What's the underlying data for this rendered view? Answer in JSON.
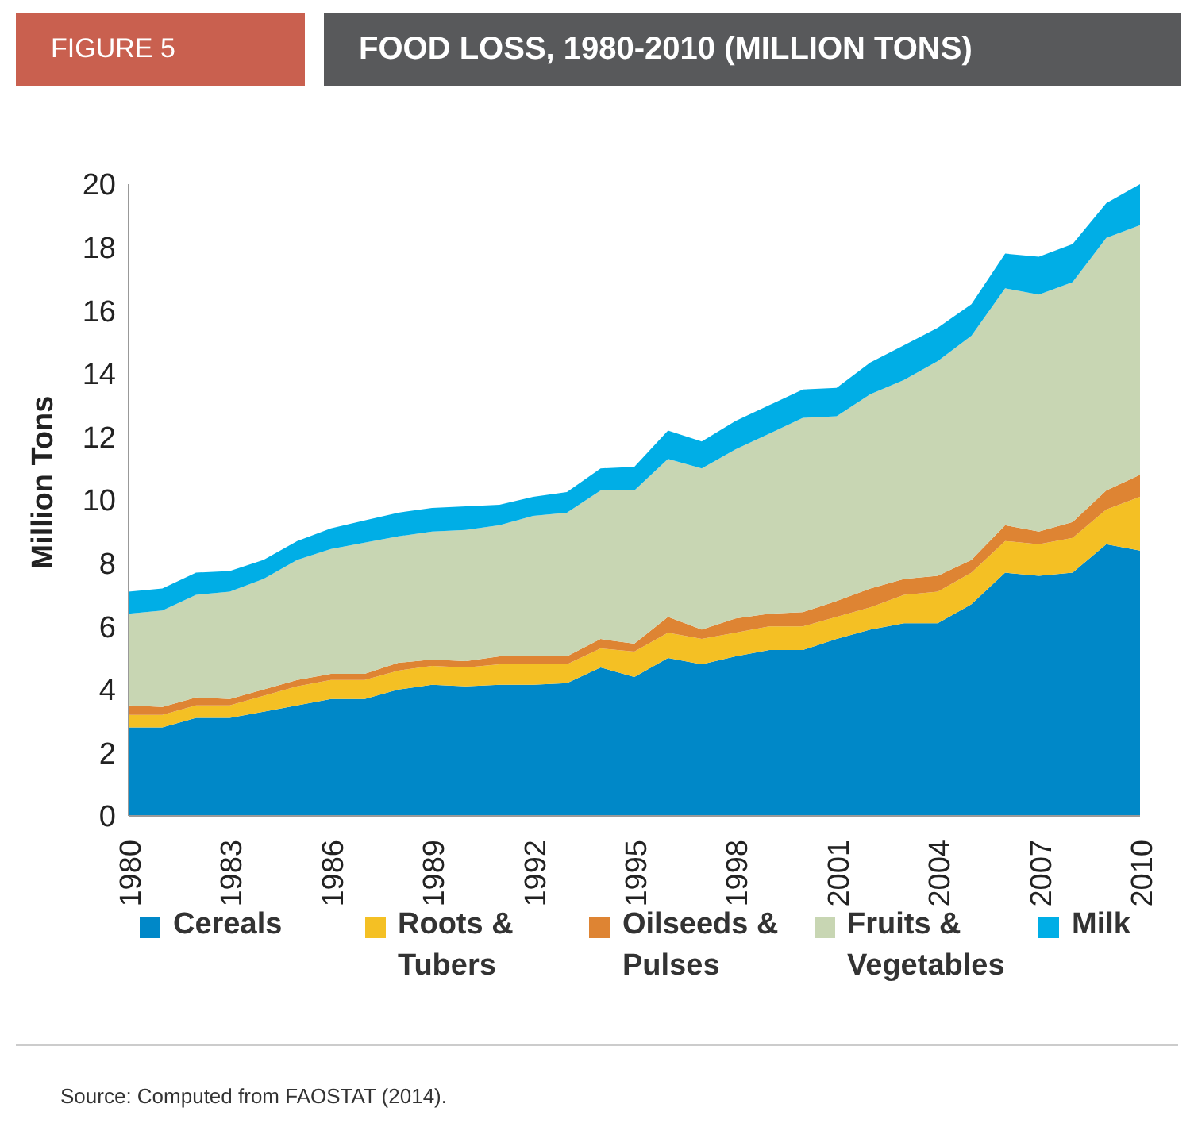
{
  "chart_data": {
    "type": "area",
    "title": "FOOD LOSS, 1980-2010 (MILLION TONS)",
    "ylabel": "Million Tons",
    "annotations": [
      "FIGURE 5",
      "Source: Computed from FAOSTAT (2014)."
    ],
    "x": [
      1980,
      1981,
      1982,
      1983,
      1984,
      1985,
      1986,
      1987,
      1988,
      1989,
      1990,
      1991,
      1992,
      1993,
      1994,
      1995,
      1996,
      1997,
      1998,
      1999,
      2000,
      2001,
      2002,
      2003,
      2004,
      2005,
      2006,
      2007,
      2008,
      2009,
      2010
    ],
    "stacked": true,
    "xlim": [
      1980,
      2010
    ],
    "xticks": [
      1980,
      1983,
      1986,
      1989,
      1992,
      1995,
      1998,
      2001,
      2004,
      2007,
      2010
    ],
    "ylim": [
      0,
      20
    ],
    "yticks": [
      0,
      2,
      4,
      6,
      8,
      10,
      12,
      14,
      16,
      18,
      20
    ],
    "grid": false,
    "legend": "bottom",
    "series": [
      {
        "name": "Cereals",
        "color": "#0088c8",
        "values": [
          2.8,
          2.8,
          3.1,
          3.1,
          3.3,
          3.5,
          3.7,
          3.7,
          4.0,
          4.15,
          4.1,
          4.15,
          4.15,
          4.2,
          4.7,
          4.4,
          5.0,
          4.8,
          5.05,
          5.25,
          5.25,
          5.6,
          5.9,
          6.1,
          6.1,
          6.7,
          7.7,
          7.6,
          7.7,
          8.6,
          8.4
        ]
      },
      {
        "name": "Roots & Tubers",
        "color": "#f4c024",
        "values": [
          0.4,
          0.4,
          0.4,
          0.4,
          0.5,
          0.6,
          0.6,
          0.6,
          0.6,
          0.6,
          0.6,
          0.65,
          0.65,
          0.6,
          0.6,
          0.8,
          0.8,
          0.8,
          0.75,
          0.75,
          0.75,
          0.7,
          0.7,
          0.9,
          1.0,
          1.0,
          1.0,
          1.0,
          1.1,
          1.1,
          1.7
        ]
      },
      {
        "name": "Oilseeds & Pulses",
        "color": "#de8433",
        "values": [
          0.3,
          0.25,
          0.25,
          0.2,
          0.2,
          0.2,
          0.2,
          0.2,
          0.25,
          0.2,
          0.2,
          0.25,
          0.25,
          0.25,
          0.3,
          0.25,
          0.5,
          0.3,
          0.45,
          0.4,
          0.45,
          0.5,
          0.6,
          0.5,
          0.5,
          0.4,
          0.5,
          0.4,
          0.5,
          0.6,
          0.7
        ]
      },
      {
        "name": "Fruits & Vegetables",
        "color": "#c8d6b3",
        "values": [
          2.9,
          3.05,
          3.25,
          3.4,
          3.5,
          3.8,
          3.95,
          4.15,
          4.0,
          4.05,
          4.15,
          4.15,
          4.45,
          4.55,
          4.7,
          4.85,
          5.0,
          5.1,
          5.35,
          5.7,
          6.15,
          5.85,
          6.15,
          6.3,
          6.8,
          7.1,
          7.5,
          7.5,
          7.6,
          8.0,
          7.9
        ]
      },
      {
        "name": "Milk",
        "color": "#00aee6",
        "values": [
          0.7,
          0.7,
          0.7,
          0.65,
          0.6,
          0.6,
          0.65,
          0.7,
          0.75,
          0.75,
          0.75,
          0.65,
          0.6,
          0.65,
          0.7,
          0.75,
          0.9,
          0.85,
          0.9,
          0.9,
          0.9,
          0.9,
          1.0,
          1.1,
          1.05,
          1.0,
          1.1,
          1.2,
          1.2,
          1.1,
          1.3
        ]
      }
    ]
  }
}
